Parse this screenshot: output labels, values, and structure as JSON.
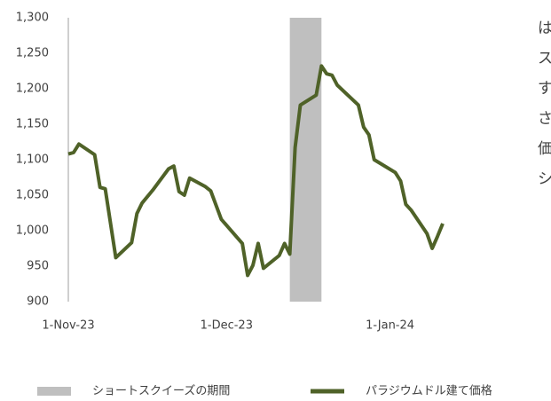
{
  "chart_data": {
    "type": "line",
    "xlim": [
      "2023-11-01",
      "2024-01-11"
    ],
    "xticks": [
      {
        "value": "2023-11-01",
        "label": "1-Nov-23"
      },
      {
        "value": "2023-12-01",
        "label": "1-Dec-23"
      },
      {
        "value": "2024-01-01",
        "label": "1-Jan-24"
      }
    ],
    "ylim": [
      900,
      1300
    ],
    "yticks": [
      900,
      950,
      {
        "value": 1000,
        "label": "1,000"
      },
      {
        "value": 1050,
        "label": "1,050"
      },
      {
        "value": 1100,
        "label": "1,100"
      },
      {
        "value": 1150,
        "label": "1,150"
      },
      {
        "value": 1200,
        "label": "1,200"
      },
      {
        "value": 1250,
        "label": "1,250"
      },
      {
        "value": 1300,
        "label": "1,300"
      }
    ],
    "grid": false,
    "bands": [
      {
        "name": "ショートスクイーズの期間",
        "start": "2023-12-13",
        "end": "2023-12-19",
        "color": "#bfbfbf"
      }
    ],
    "x": [
      "2023-11-01",
      "2023-11-02",
      "2023-11-03",
      "2023-11-06",
      "2023-11-07",
      "2023-11-08",
      "2023-11-10",
      "2023-11-13",
      "2023-11-14",
      "2023-11-15",
      "2023-11-17",
      "2023-11-20",
      "2023-11-21",
      "2023-11-22",
      "2023-11-23",
      "2023-11-24",
      "2023-11-27",
      "2023-11-28",
      "2023-11-30",
      "2023-12-04",
      "2023-12-05",
      "2023-12-06",
      "2023-12-07",
      "2023-12-08",
      "2023-12-11",
      "2023-12-12",
      "2023-12-13",
      "2023-12-14",
      "2023-12-15",
      "2023-12-18",
      "2023-12-19",
      "2023-12-20",
      "2023-12-21",
      "2023-12-22",
      "2023-12-26",
      "2023-12-27",
      "2023-12-28",
      "2023-12-29",
      "2024-01-02",
      "2024-01-03",
      "2024-01-04",
      "2024-01-05",
      "2024-01-08",
      "2024-01-09",
      "2024-01-10",
      "2024-01-11"
    ],
    "series": [
      {
        "name": "パラジウムドル建て価格",
        "color": "#4f6228",
        "values": [
          1108,
          1110,
          1122,
          1107,
          1061,
          1059,
          962,
          983,
          1024,
          1039,
          1057,
          1087,
          1091,
          1055,
          1050,
          1074,
          1062,
          1056,
          1016,
          982,
          937,
          951,
          982,
          947,
          965,
          982,
          967,
          1117,
          1177,
          1191,
          1232,
          1221,
          1219,
          1205,
          1177,
          1146,
          1135,
          1100,
          1082,
          1070,
          1037,
          1029,
          996,
          975,
          992,
          1010
        ]
      }
    ],
    "legend": "bottom",
    "annotations": [
      "は",
      "ス",
      "す",
      "さ",
      "価",
      "シ"
    ]
  }
}
